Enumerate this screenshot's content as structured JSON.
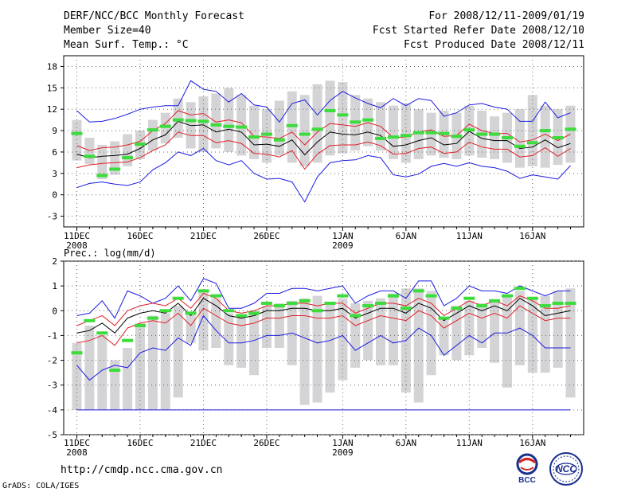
{
  "header": {
    "title": "DERF/NCC/BCC Monthly Forecast",
    "member_size": "Member Size=40",
    "variable": "Mean Surf. Temp.: °C",
    "for_period": "For 2008/12/11-2009/01/19",
    "fcst_started": "Fcst Started Refer Date 2008/12/10",
    "fcst_produced": "Fcst Produced Date 2008/12/11"
  },
  "footer": {
    "url": "http://cmdp.ncc.cma.gov.cn",
    "credit": "GrADS: COLA/IGES"
  },
  "logos": {
    "bcc": "BCC",
    "ncc": "NCC"
  },
  "colors": {
    "box": "#d4d4d6",
    "mean": "#000000",
    "inner": "#e0202a",
    "outer": "#1c1ce0",
    "obs": "#3cdc3c",
    "grid": "#666666"
  },
  "chart_data": [
    {
      "type": "box",
      "title": "Mean Surf. Temp.: °C",
      "x": [
        "11DEC",
        "12DEC",
        "13DEC",
        "14DEC",
        "15DEC",
        "16DEC",
        "17DEC",
        "18DEC",
        "19DEC",
        "20DEC",
        "21DEC",
        "22DEC",
        "23DEC",
        "24DEC",
        "25DEC",
        "26DEC",
        "27DEC",
        "28DEC",
        "29DEC",
        "30DEC",
        "31DEC",
        "1JAN",
        "2JAN",
        "3JAN",
        "4JAN",
        "5JAN",
        "6JAN",
        "7JAN",
        "8JAN",
        "9JAN",
        "10JAN",
        "11JAN",
        "12JAN",
        "13JAN",
        "14JAN",
        "15JAN",
        "16JAN",
        "17JAN",
        "18JAN",
        "19JAN"
      ],
      "xticks": [
        "11DEC",
        "16DEC",
        "21DEC",
        "26DEC",
        "1JAN",
        "6JAN",
        "11JAN",
        "16JAN"
      ],
      "year_labels": [
        {
          "at": "11DEC",
          "text": "2008"
        },
        {
          "at": "1JAN",
          "text": "2009"
        }
      ],
      "ylim": [
        -4.5,
        19.5
      ],
      "yticks": [
        -3,
        0,
        3,
        6,
        9,
        12,
        15,
        18
      ],
      "series": [
        {
          "name": "box_low",
          "values": [
            4.8,
            4.3,
            2.2,
            2.8,
            4.0,
            5.0,
            6.2,
            7.2,
            8.0,
            6.5,
            6.0,
            6.5,
            6.0,
            5.5,
            5.0,
            4.5,
            5.5,
            4.5,
            4.0,
            4.5,
            5.5,
            5.8,
            6.2,
            6.8,
            6.2,
            5.0,
            4.5,
            5.0,
            5.5,
            5.2,
            5.0,
            5.5,
            5.2,
            5.0,
            4.5,
            3.8,
            4.0,
            3.8,
            4.2,
            4.5
          ]
        },
        {
          "name": "box_high",
          "values": [
            10.5,
            8.0,
            7.0,
            7.5,
            8.5,
            9.0,
            10.5,
            11.5,
            13.5,
            13.0,
            13.8,
            14.2,
            15.0,
            14.0,
            12.5,
            12.0,
            13.2,
            14.5,
            14.0,
            15.5,
            16.0,
            15.8,
            14.0,
            13.5,
            13.0,
            12.5,
            12.8,
            12.0,
            11.5,
            11.8,
            11.5,
            12.5,
            11.8,
            11.0,
            11.5,
            12.0,
            14.0,
            12.5,
            12.0,
            12.5
          ]
        },
        {
          "name": "ensemble_mean",
          "values": [
            5.7,
            5.2,
            5.4,
            5.5,
            5.7,
            6.5,
            7.7,
            8.4,
            10.3,
            9.7,
            9.8,
            8.8,
            9.2,
            8.8,
            7.0,
            7.1,
            6.8,
            7.7,
            5.6,
            7.4,
            8.8,
            8.5,
            8.4,
            8.8,
            8.3,
            6.8,
            7.0,
            7.6,
            8.0,
            7.0,
            7.2,
            8.9,
            7.9,
            7.6,
            7.6,
            6.5,
            6.7,
            7.7,
            6.6,
            7.2
          ]
        },
        {
          "name": "inner_upper",
          "values": [
            6.9,
            6.2,
            6.6,
            6.7,
            7.0,
            7.5,
            9.0,
            10.0,
            11.8,
            11.2,
            11.4,
            10.2,
            10.5,
            10.1,
            8.2,
            8.1,
            7.9,
            8.8,
            7.0,
            8.8,
            10.0,
            9.8,
            9.6,
            10.1,
            9.6,
            8.0,
            8.1,
            8.8,
            9.1,
            8.2,
            8.3,
            9.9,
            9.0,
            8.6,
            8.6,
            7.4,
            7.7,
            8.5,
            7.6,
            8.5
          ]
        },
        {
          "name": "inner_lower",
          "values": [
            3.8,
            4.2,
            4.4,
            4.5,
            4.6,
            5.2,
            6.2,
            7.0,
            8.8,
            8.3,
            8.3,
            7.3,
            7.6,
            7.2,
            5.8,
            5.7,
            5.3,
            6.2,
            3.6,
            5.7,
            6.9,
            7.0,
            7.0,
            7.4,
            6.9,
            5.7,
            5.8,
            6.5,
            6.7,
            5.8,
            6.0,
            7.4,
            6.7,
            6.4,
            6.4,
            5.3,
            5.5,
            6.6,
            5.4,
            6.5
          ]
        },
        {
          "name": "outer_upper",
          "values": [
            11.8,
            10.2,
            10.3,
            10.7,
            11.3,
            12.0,
            12.3,
            12.5,
            12.5,
            16.0,
            14.8,
            14.5,
            13.0,
            14.2,
            12.6,
            12.3,
            10.2,
            12.8,
            13.3,
            11.2,
            13.2,
            14.5,
            13.6,
            12.8,
            12.2,
            13.5,
            12.5,
            13.5,
            13.2,
            11.0,
            11.5,
            12.6,
            12.8,
            12.3,
            12.0,
            10.3,
            10.3,
            13.0,
            10.8,
            11.5
          ]
        },
        {
          "name": "outer_lower",
          "values": [
            1.0,
            1.6,
            1.8,
            1.5,
            1.3,
            1.8,
            3.5,
            4.5,
            6.0,
            5.5,
            6.5,
            4.8,
            4.2,
            4.8,
            3.0,
            2.2,
            2.3,
            1.8,
            -1.0,
            2.5,
            4.5,
            4.8,
            4.9,
            5.5,
            5.2,
            2.8,
            2.5,
            2.9,
            4.0,
            4.4,
            4.0,
            4.5,
            4.0,
            3.8,
            3.3,
            2.3,
            2.8,
            2.5,
            2.2,
            4.1
          ]
        },
        {
          "name": "observed",
          "values": [
            8.6,
            5.4,
            2.7,
            3.6,
            5.2,
            7.1,
            9.1,
            9.6,
            10.5,
            10.4,
            10.3,
            9.8,
            9.6,
            9.5,
            8.1,
            8.5,
            7.7,
            9.7,
            8.5,
            9.2,
            11.8,
            11.2,
            10.2,
            10.5,
            7.9,
            8.1,
            8.3,
            8.7,
            8.7,
            8.6,
            8.2,
            9.1,
            8.5,
            8.5,
            8.0,
            6.8,
            7.3,
            9.0,
            8.0,
            9.2
          ]
        }
      ]
    },
    {
      "type": "box",
      "title": "Prec.: log(mm/d)",
      "x": [
        "11DEC",
        "12DEC",
        "13DEC",
        "14DEC",
        "15DEC",
        "16DEC",
        "17DEC",
        "18DEC",
        "19DEC",
        "20DEC",
        "21DEC",
        "22DEC",
        "23DEC",
        "24DEC",
        "25DEC",
        "26DEC",
        "27DEC",
        "28DEC",
        "29DEC",
        "30DEC",
        "31DEC",
        "1JAN",
        "2JAN",
        "3JAN",
        "4JAN",
        "5JAN",
        "6JAN",
        "7JAN",
        "8JAN",
        "9JAN",
        "10JAN",
        "11JAN",
        "12JAN",
        "13JAN",
        "14JAN",
        "15JAN",
        "16JAN",
        "17JAN",
        "18JAN",
        "19JAN"
      ],
      "xticks": [
        "11DEC",
        "16DEC",
        "21DEC",
        "26DEC",
        "1JAN",
        "6JAN",
        "11JAN",
        "16JAN"
      ],
      "year_labels": [
        {
          "at": "11DEC",
          "text": "2008"
        },
        {
          "at": "1JAN",
          "text": "2009"
        }
      ],
      "ylim": [
        -5,
        2
      ],
      "yticks": [
        -5,
        -4,
        -3,
        -2,
        -1,
        0,
        1,
        2
      ],
      "series": [
        {
          "name": "box_low",
          "values": [
            -4.0,
            -4.0,
            -4.0,
            -4.0,
            -4.0,
            -4.0,
            -4.0,
            -4.0,
            -3.5,
            -1.3,
            -1.6,
            -1.5,
            -2.2,
            -2.3,
            -2.6,
            -1.5,
            -1.5,
            -2.2,
            -3.8,
            -3.7,
            -3.3,
            -2.8,
            -2.3,
            -2.0,
            -2.2,
            -2.2,
            -3.3,
            -3.7,
            -2.6,
            -1.8,
            -2.0,
            -1.8,
            -1.5,
            -2.1,
            -3.1,
            -2.2,
            -2.5,
            -2.5,
            -2.3,
            -3.5
          ]
        },
        {
          "name": "box_high",
          "values": [
            -1.3,
            -0.6,
            -1.0,
            -2.0,
            -1.5,
            -0.5,
            -0.2,
            -0.1,
            0.2,
            -0.1,
            0.8,
            0.5,
            -0.1,
            -0.2,
            0.0,
            0.2,
            0.3,
            0.4,
            0.5,
            0.6,
            0.3,
            0.5,
            0.3,
            0.4,
            0.5,
            0.7,
            0.9,
            0.9,
            0.8,
            -0.3,
            0.2,
            0.4,
            0.3,
            0.4,
            0.6,
            0.8,
            0.5,
            0.6,
            0.8,
            0.9
          ]
        },
        {
          "name": "ensemble_mean",
          "values": [
            -0.9,
            -0.8,
            -0.5,
            -0.9,
            -0.3,
            -0.1,
            0.0,
            -0.1,
            0.3,
            -0.2,
            0.5,
            0.2,
            -0.2,
            -0.3,
            -0.2,
            0.0,
            0.0,
            0.1,
            0.1,
            0.0,
            0.0,
            0.1,
            -0.3,
            -0.1,
            0.1,
            0.1,
            -0.1,
            0.3,
            0.1,
            -0.4,
            -0.1,
            0.2,
            0.0,
            0.2,
            0.0,
            0.5,
            0.2,
            -0.2,
            -0.1,
            0.0
          ]
        },
        {
          "name": "inner_upper",
          "values": [
            -0.6,
            -0.4,
            -0.2,
            -0.6,
            0.0,
            0.2,
            0.3,
            0.2,
            0.5,
            0.1,
            0.7,
            0.5,
            0.0,
            -0.1,
            0.0,
            0.2,
            0.2,
            0.3,
            0.3,
            0.2,
            0.3,
            0.3,
            -0.1,
            0.1,
            0.3,
            0.3,
            0.2,
            0.5,
            0.3,
            -0.2,
            0.1,
            0.4,
            0.2,
            0.4,
            0.2,
            0.6,
            0.4,
            0.1,
            0.1,
            0.2
          ]
        },
        {
          "name": "inner_lower",
          "values": [
            -1.3,
            -1.2,
            -1.0,
            -1.4,
            -0.7,
            -0.5,
            -0.4,
            -0.5,
            -0.1,
            -0.6,
            0.1,
            -0.2,
            -0.5,
            -0.6,
            -0.5,
            -0.3,
            -0.3,
            -0.2,
            -0.2,
            -0.3,
            -0.3,
            -0.2,
            -0.6,
            -0.4,
            -0.2,
            -0.3,
            -0.4,
            0.0,
            -0.2,
            -0.7,
            -0.4,
            -0.1,
            -0.3,
            -0.1,
            -0.3,
            0.2,
            -0.1,
            -0.4,
            -0.3,
            -0.3
          ]
        },
        {
          "name": "outer_upper",
          "values": [
            -0.2,
            -0.1,
            0.4,
            -0.3,
            0.8,
            0.6,
            0.3,
            0.5,
            1.0,
            0.4,
            1.3,
            1.1,
            0.1,
            0.1,
            0.3,
            0.7,
            0.7,
            0.9,
            0.9,
            0.8,
            0.9,
            1.0,
            0.3,
            0.6,
            0.8,
            0.8,
            0.5,
            1.2,
            1.2,
            0.2,
            0.5,
            1.0,
            0.8,
            0.8,
            0.7,
            1.0,
            0.8,
            0.6,
            0.8,
            0.8
          ]
        },
        {
          "name": "outer_lower",
          "values": [
            -2.2,
            -2.8,
            -2.4,
            -2.2,
            -2.3,
            -1.7,
            -1.5,
            -1.6,
            -1.1,
            -1.4,
            -0.2,
            -0.8,
            -1.3,
            -1.3,
            -1.2,
            -1.0,
            -1.0,
            -0.9,
            -1.1,
            -1.3,
            -1.2,
            -1.0,
            -1.6,
            -1.3,
            -1.0,
            -1.3,
            -1.2,
            -0.7,
            -1.0,
            -1.8,
            -1.4,
            -1.0,
            -1.3,
            -0.9,
            -0.9,
            -0.7,
            -1.0,
            -1.5,
            -1.5,
            -1.5
          ]
        },
        {
          "name": "observed",
          "values": [
            -1.7,
            -0.4,
            -0.9,
            -2.4,
            -1.2,
            -0.6,
            -0.3,
            0.0,
            0.5,
            -0.1,
            0.8,
            0.6,
            0.0,
            -0.2,
            -0.1,
            0.3,
            0.2,
            0.3,
            0.4,
            0.0,
            0.3,
            0.6,
            -0.2,
            0.2,
            0.3,
            0.6,
            0.1,
            0.8,
            0.6,
            -0.3,
            0.1,
            0.5,
            0.2,
            0.4,
            0.6,
            0.9,
            0.5,
            0.2,
            0.3,
            0.3
          ]
        }
      ],
      "floor": -4
    }
  ]
}
